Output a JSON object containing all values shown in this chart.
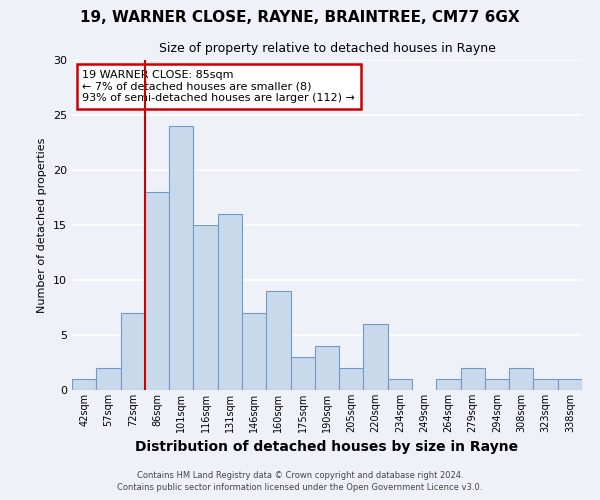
{
  "title1": "19, WARNER CLOSE, RAYNE, BRAINTREE, CM77 6GX",
  "title2": "Size of property relative to detached houses in Rayne",
  "xlabel": "Distribution of detached houses by size in Rayne",
  "ylabel": "Number of detached properties",
  "footer1": "Contains HM Land Registry data © Crown copyright and database right 2024.",
  "footer2": "Contains public sector information licensed under the Open Government Licence v3.0.",
  "bin_labels": [
    "42sqm",
    "57sqm",
    "72sqm",
    "86sqm",
    "101sqm",
    "116sqm",
    "131sqm",
    "146sqm",
    "160sqm",
    "175sqm",
    "190sqm",
    "205sqm",
    "220sqm",
    "234sqm",
    "249sqm",
    "264sqm",
    "279sqm",
    "294sqm",
    "308sqm",
    "323sqm",
    "338sqm"
  ],
  "counts": [
    1,
    2,
    7,
    18,
    24,
    15,
    16,
    7,
    9,
    3,
    4,
    2,
    6,
    1,
    0,
    1,
    2,
    1,
    2,
    1,
    1
  ],
  "bar_color": "#c9d9ec",
  "bar_edge_color": "#7399c6",
  "vline_x_index": 3,
  "vline_color": "#cc0000",
  "annotation_text": "19 WARNER CLOSE: 85sqm\n← 7% of detached houses are smaller (8)\n93% of semi-detached houses are larger (112) →",
  "annotation_box_color": "#ffffff",
  "annotation_box_edge_color": "#cc0000",
  "ylim": [
    0,
    30
  ],
  "yticks": [
    0,
    5,
    10,
    15,
    20,
    25,
    30
  ],
  "background_color": "#eef2f8",
  "grid_color": "#ffffff",
  "title1_fontsize": 11,
  "title2_fontsize": 9,
  "xlabel_fontsize": 10,
  "ylabel_fontsize": 8
}
